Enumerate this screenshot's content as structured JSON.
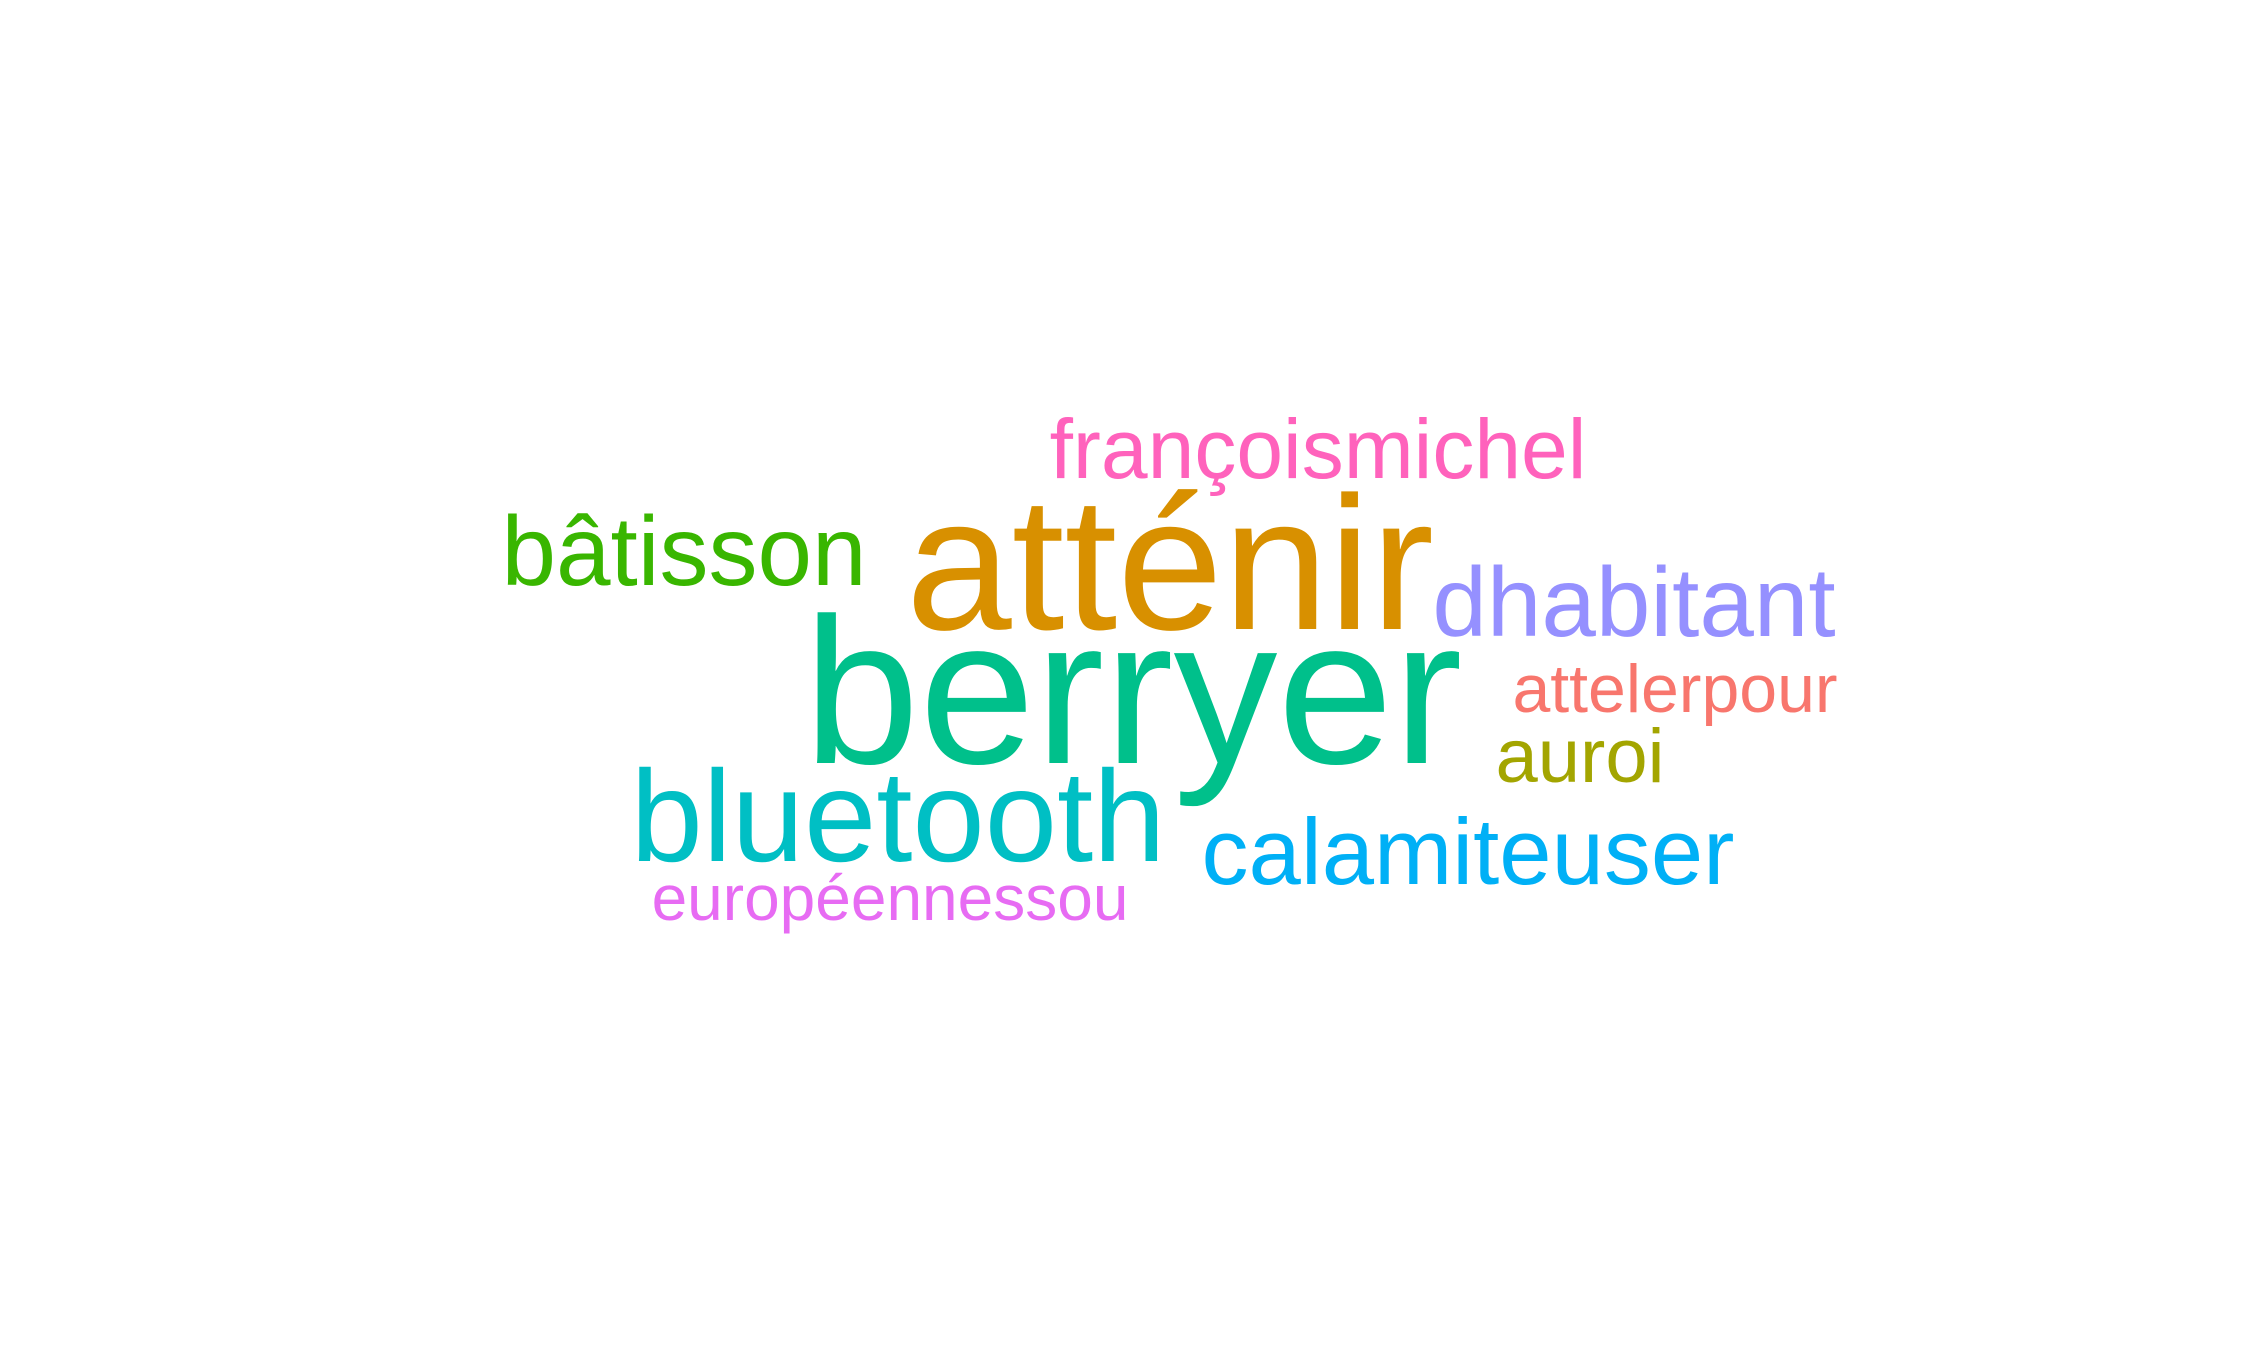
{
  "words": [
    {
      "id": "berryer",
      "text": "berryer",
      "color": "#00C08B"
    },
    {
      "id": "attenir",
      "text": "atténir",
      "color": "#D89000"
    },
    {
      "id": "bluetooth",
      "text": "bluetooth",
      "color": "#00BFC4"
    },
    {
      "id": "dhabitant",
      "text": "dhabitant",
      "color": "#9590FF"
    },
    {
      "id": "calamiteuser",
      "text": "calamiteuser",
      "color": "#00B0F6"
    },
    {
      "id": "batisson",
      "text": "bâtisson",
      "color": "#39B600"
    },
    {
      "id": "francoismichel",
      "text": "françoismichel",
      "color": "#FF62BC"
    },
    {
      "id": "auroi",
      "text": "auroi",
      "color": "#A3A500"
    },
    {
      "id": "attelerpour",
      "text": "attelerpour",
      "color": "#F8766D"
    },
    {
      "id": "europeennessou",
      "text": "européennessou",
      "color": "#E76BF3"
    }
  ]
}
